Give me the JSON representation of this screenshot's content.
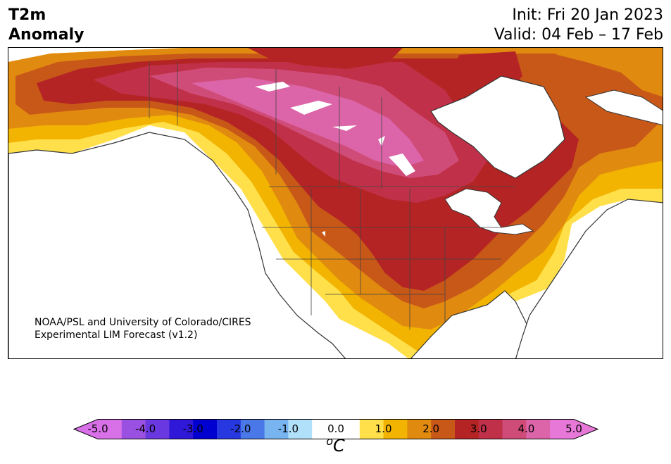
{
  "title": {
    "variable_line1": "T2m",
    "variable_line2": "Anomaly",
    "init": "Init: Fri 20 Jan 2023",
    "valid": "Valid: 04 Feb – 17 Feb"
  },
  "credit": {
    "line1": "NOAA/PSL and University of Colorado/CIRES",
    "line2": "Experimental LIM Forecast (v1.2)"
  },
  "colorbar": {
    "ticks": [
      "-5.0",
      "-4.0",
      "-3.0",
      "-2.0",
      "-1.0",
      "0.0",
      "1.0",
      "2.0",
      "3.0",
      "4.0",
      "5.0"
    ],
    "unit": "oC",
    "colors": [
      "#d870e8",
      "#9a50e0",
      "#6a38e0",
      "#3018d8",
      "#0000d0",
      "#2838e0",
      "#4a78e8",
      "#78b4f0",
      "#b0e0fa",
      "#ffffff",
      "#ffffff",
      "#ffe04a",
      "#f2b400",
      "#e08a10",
      "#c85818",
      "#b42424",
      "#c03048",
      "#d04c78",
      "#dc64a8",
      "#e878d8"
    ],
    "over_color": "#e878d8",
    "under_color": "#d870e8"
  },
  "map": {
    "region": "North America",
    "colors": {
      "ocean": "#ffffff",
      "level1": "#ffe04a",
      "level1_5": "#f2b400",
      "level2": "#e08a10",
      "level2_5": "#c85818",
      "level3": "#b42424",
      "level3_5": "#c03048",
      "level4": "#d04c78",
      "level4_5": "#dc64a8",
      "coast": "#333333"
    }
  }
}
